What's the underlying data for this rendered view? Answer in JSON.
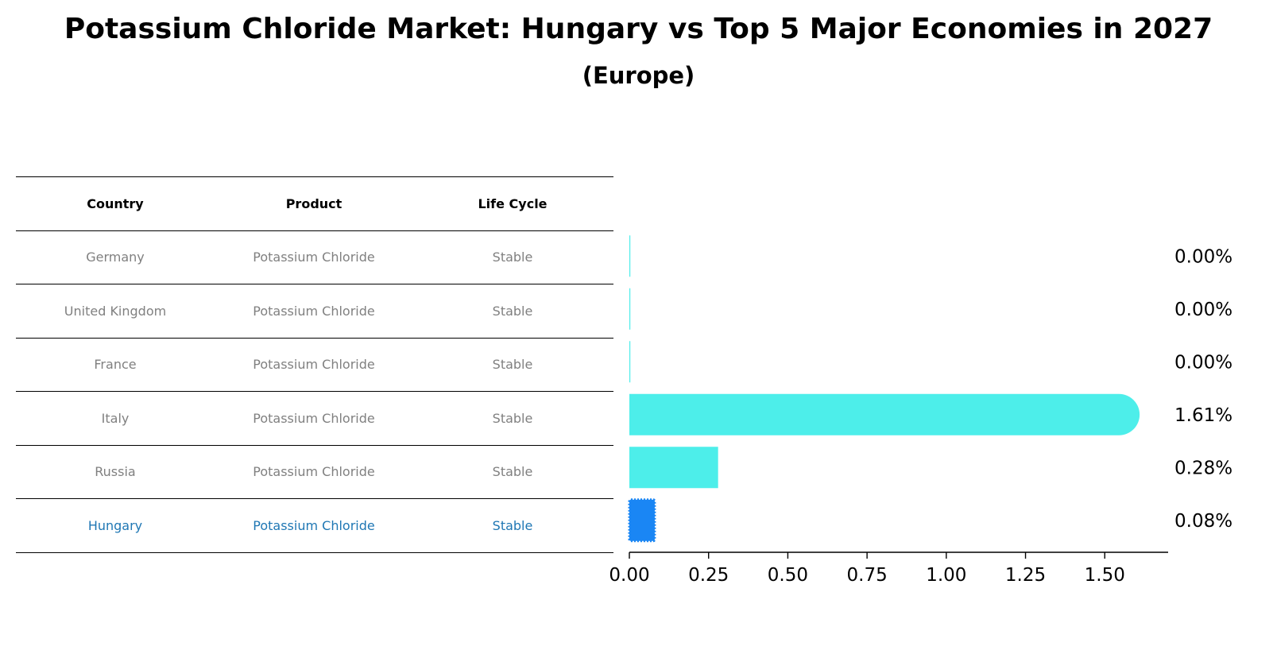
{
  "title": "Potassium Chloride Market: Hungary vs Top 5 Major Economies in 2027",
  "subtitle": "(Europe)",
  "table": {
    "headers": [
      "Country",
      "Product",
      "Life Cycle"
    ],
    "rows": [
      [
        "Germany",
        "Potassium Chloride",
        "Stable"
      ],
      [
        "United Kingdom",
        "Potassium Chloride",
        "Stable"
      ],
      [
        "France",
        "Potassium Chloride",
        "Stable"
      ],
      [
        "Italy",
        "Potassium Chloride",
        "Stable"
      ],
      [
        "Russia",
        "Potassium Chloride",
        "Stable"
      ],
      [
        "Hungary",
        "Potassium Chloride",
        "Stable"
      ]
    ],
    "highlight_row": "Hungary"
  },
  "chart_data": {
    "type": "bar",
    "orientation": "horizontal",
    "categories": [
      "Germany",
      "United Kingdom",
      "France",
      "Italy",
      "Russia",
      "Hungary"
    ],
    "values": [
      0.0,
      0.0,
      0.0,
      1.61,
      0.28,
      0.08
    ],
    "value_labels": [
      "0.00%",
      "0.00%",
      "0.00%",
      "1.61%",
      "0.28%",
      "0.08%"
    ],
    "xlim": [
      0,
      1.7
    ],
    "xticks": [
      "0.00",
      "0.25",
      "0.50",
      "0.75",
      "1.00",
      "1.25",
      "1.50"
    ],
    "grid": false,
    "colors": {
      "default": "#4deeea",
      "highlight": "#1a86f4"
    }
  }
}
